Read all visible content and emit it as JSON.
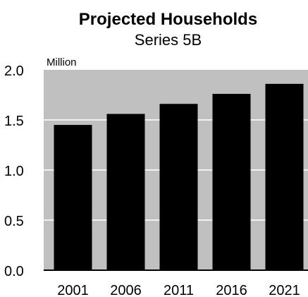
{
  "chart_data": {
    "type": "bar",
    "title": "Projected Households",
    "subtitle": "Series 5B",
    "ylabel": "Million",
    "xlabel": "",
    "categories": [
      "2001",
      "2006",
      "2011",
      "2016",
      "2021"
    ],
    "values": [
      1.45,
      1.56,
      1.66,
      1.76,
      1.86
    ],
    "ylim": [
      0,
      2.0
    ],
    "yticks": [
      "0.0",
      "0.5",
      "1.0",
      "1.5",
      "2.0"
    ],
    "grid": true,
    "colors": {
      "bar": "#000000",
      "plot_bg": "#c0c0c0",
      "grid": "#ffffff"
    }
  }
}
